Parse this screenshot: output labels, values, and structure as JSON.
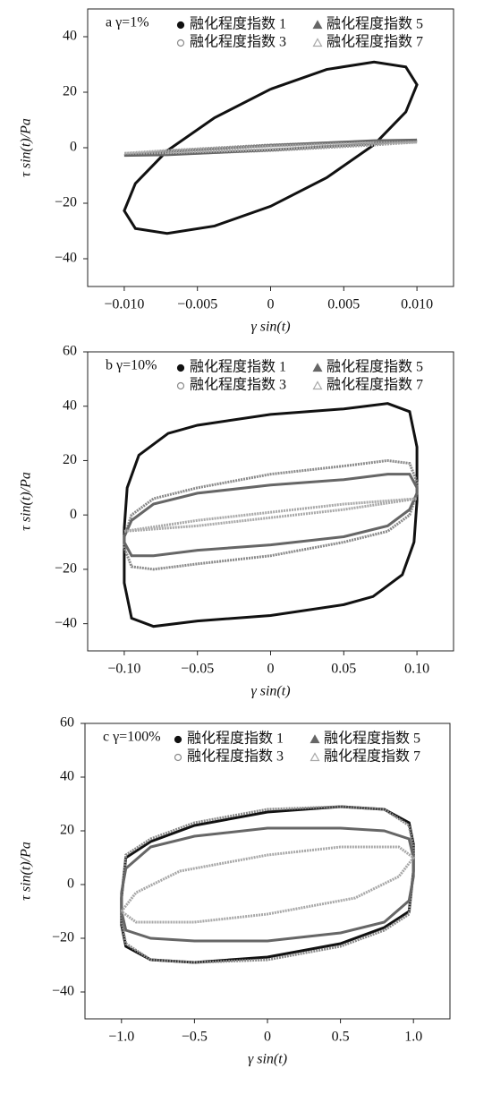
{
  "chart_data": [
    {
      "type": "line",
      "annotation": "a γ=1%",
      "xlabel": "γ sin(t)",
      "ylabel": "τ sin(t)/Pa",
      "xlim": [
        -0.0125,
        0.0125
      ],
      "ylim": [
        -50,
        50
      ],
      "xticks": [
        {
          "value": -0.01,
          "label": "−0.010"
        },
        {
          "value": -0.005,
          "label": "−0.005"
        },
        0,
        0.005,
        {
          "value": 0.01,
          "label": "0.010"
        }
      ],
      "yticks": [
        {
          "value": -40,
          "label": "−40"
        },
        {
          "value": -20,
          "label": "−20"
        },
        0,
        20,
        40
      ],
      "series": [
        {
          "name": "融化程度指数 1",
          "color": "#111111",
          "marker": "filled-circle",
          "x": [
            0,
            0.00383,
            0.00707,
            0.00924,
            0.01,
            0.00924,
            0.00707,
            0.00383,
            0,
            -0.00383,
            -0.00707,
            -0.00924,
            -0.01,
            -0.00924,
            -0.00707,
            -0.00383,
            0
          ],
          "values": [
            21.1,
            28.2,
            30.9,
            29.1,
            22.7,
            12.9,
            1.1,
            -10.8,
            -21.1,
            -28.2,
            -30.9,
            -29.1,
            -22.7,
            -12.9,
            -1.1,
            10.8,
            21.1
          ]
        },
        {
          "name": "融化程度指数 3",
          "color": "#8a8a8a",
          "marker": "open-circle",
          "x": [
            0,
            0.00707,
            0.01,
            0.00707,
            0,
            -0.00707,
            -0.01,
            -0.00707,
            0
          ],
          "values": [
            1.0,
            2.4,
            2.4,
            1.0,
            -1.0,
            -2.4,
            -2.4,
            -1.0,
            1.0
          ]
        },
        {
          "name": "融化程度指数 5",
          "color": "#666666",
          "marker": "filled-triangle",
          "x": [
            0,
            0.00707,
            0.01,
            0.00707,
            0,
            -0.00707,
            -0.01,
            -0.00707,
            0
          ],
          "values": [
            0.8,
            2.55,
            2.8,
            1.41,
            -0.8,
            -2.55,
            -2.8,
            -1.41,
            0.8
          ]
        },
        {
          "name": "融化程度指数 7",
          "color": "#a8a8a8",
          "marker": "open-triangle",
          "x": [
            0,
            0.00707,
            0.01,
            0.00707,
            0,
            -0.00707,
            -0.01,
            -0.00707,
            0
          ],
          "values": [
            0.6,
            1.84,
            2.0,
            1.0,
            -0.6,
            -1.84,
            -2.0,
            -1.0,
            0.6
          ]
        }
      ]
    },
    {
      "type": "line",
      "annotation": "b γ=10%",
      "xlabel": "γ sin(t)",
      "ylabel": "τ sin(t)/Pa",
      "xlim": [
        -0.125,
        0.125
      ],
      "ylim": [
        -50,
        60
      ],
      "xticks": [
        {
          "value": -0.1,
          "label": "−0.10"
        },
        {
          "value": -0.05,
          "label": "−0.05"
        },
        0,
        0.05,
        {
          "value": 0.1,
          "label": "0.10"
        }
      ],
      "yticks": [
        {
          "value": -40,
          "label": "−40"
        },
        {
          "value": -20,
          "label": "−20"
        },
        0,
        20,
        40,
        60
      ],
      "series": [
        {
          "name": "融化程度指数 1",
          "color": "#111111",
          "marker": "filled-circle",
          "x": [
            -0.1,
            -0.098,
            -0.09,
            -0.07,
            -0.05,
            0,
            0.05,
            0.08,
            0.095,
            0.1,
            0.1,
            0.098,
            0.09,
            0.07,
            0.05,
            0,
            -0.05,
            -0.08,
            -0.095,
            -0.1,
            -0.1
          ],
          "values": [
            -5,
            10,
            22,
            30,
            33,
            37,
            39,
            41,
            38,
            25,
            5,
            -10,
            -22,
            -30,
            -33,
            -37,
            -39,
            -41,
            -38,
            -25,
            -5
          ]
        },
        {
          "name": "融化程度指数 3",
          "color": "#8a8a8a",
          "marker": "open-circle",
          "x": [
            -0.1,
            -0.095,
            -0.08,
            -0.05,
            0,
            0.05,
            0.08,
            0.095,
            0.1,
            0.1,
            0.095,
            0.08,
            0.05,
            0,
            -0.05,
            -0.08,
            -0.095,
            -0.1,
            -0.1
          ],
          "values": [
            -8,
            0,
            6,
            10,
            15,
            18,
            20,
            19,
            12,
            8,
            0,
            -6,
            -10,
            -15,
            -18,
            -20,
            -19,
            -12,
            -8
          ]
        },
        {
          "name": "融化程度指数 5",
          "color": "#666666",
          "marker": "filled-triangle",
          "x": [
            -0.1,
            -0.095,
            -0.08,
            -0.05,
            0,
            0.05,
            0.08,
            0.095,
            0.1,
            0.1,
            0.095,
            0.08,
            0.05,
            0,
            -0.05,
            -0.08,
            -0.095,
            -0.1,
            -0.1
          ],
          "values": [
            -8,
            -2,
            4,
            8,
            11,
            13,
            15,
            15,
            10,
            8,
            2,
            -4,
            -8,
            -11,
            -13,
            -15,
            -15,
            -10,
            -8
          ]
        },
        {
          "name": "融化程度指数 7",
          "color": "#a8a8a8",
          "marker": "open-triangle",
          "x": [
            -0.1,
            -0.05,
            0,
            0.05,
            0.1,
            0.05,
            0,
            -0.05,
            -0.1
          ],
          "values": [
            -6,
            -4,
            -1,
            2,
            6,
            4,
            1,
            -2,
            -6
          ]
        }
      ]
    },
    {
      "type": "line",
      "annotation": "c γ=100%",
      "xlabel": "γ sin(t)",
      "ylabel": "τ sin(t)/Pa",
      "xlim": [
        -1.25,
        1.25
      ],
      "ylim": [
        -50,
        60
      ],
      "xticks": [
        {
          "value": -1,
          "label": "−1.0"
        },
        {
          "value": -0.5,
          "label": "−0.5"
        },
        0,
        0.5,
        {
          "value": 1,
          "label": "1.0"
        }
      ],
      "yticks": [
        {
          "value": -40,
          "label": "−40"
        },
        {
          "value": -20,
          "label": "−20"
        },
        0,
        20,
        40,
        60
      ],
      "series": [
        {
          "name": "融化程度指数 1",
          "color": "#111111",
          "marker": "filled-circle",
          "x": [
            -1,
            -0.97,
            -0.8,
            -0.5,
            0,
            0.5,
            0.8,
            0.97,
            1,
            1,
            0.97,
            0.8,
            0.5,
            0,
            -0.5,
            -0.8,
            -0.97,
            -1,
            -1
          ],
          "values": [
            -5,
            10,
            16,
            22,
            27,
            29,
            28,
            23,
            15,
            5,
            -10,
            -16,
            -22,
            -27,
            -29,
            -28,
            -23,
            -15,
            -5
          ]
        },
        {
          "name": "融化程度指数 3",
          "color": "#8a8a8a",
          "marker": "open-circle",
          "x": [
            -1,
            -0.97,
            -0.8,
            -0.5,
            0,
            0.5,
            0.8,
            0.97,
            1,
            1,
            0.97,
            0.8,
            0.5,
            0,
            -0.5,
            -0.8,
            -0.97,
            -1,
            -1
          ],
          "values": [
            -5,
            11,
            17,
            23,
            28,
            29,
            28,
            22,
            14,
            5,
            -11,
            -17,
            -23,
            -28,
            -29,
            -28,
            -22,
            -14,
            -5
          ]
        },
        {
          "name": "融化程度指数 5",
          "color": "#666666",
          "marker": "filled-triangle",
          "x": [
            -1,
            -0.97,
            -0.8,
            -0.5,
            0,
            0.5,
            0.8,
            0.97,
            1,
            1,
            0.97,
            0.8,
            0.5,
            0,
            -0.5,
            -0.8,
            -0.97,
            -1,
            -1
          ],
          "values": [
            -3,
            6,
            14,
            18,
            21,
            21,
            20,
            17,
            10,
            3,
            -6,
            -14,
            -18,
            -21,
            -21,
            -20,
            -17,
            -10,
            -3
          ]
        },
        {
          "name": "融化程度指数 7",
          "color": "#a8a8a8",
          "marker": "open-triangle",
          "x": [
            -1,
            -0.9,
            -0.6,
            0,
            0.5,
            0.9,
            1,
            0.9,
            0.6,
            0,
            -0.5,
            -0.9,
            -1
          ],
          "values": [
            -10,
            -3,
            5,
            11,
            14,
            14,
            10,
            3,
            -5,
            -11,
            -14,
            -14,
            -10
          ]
        }
      ]
    }
  ]
}
